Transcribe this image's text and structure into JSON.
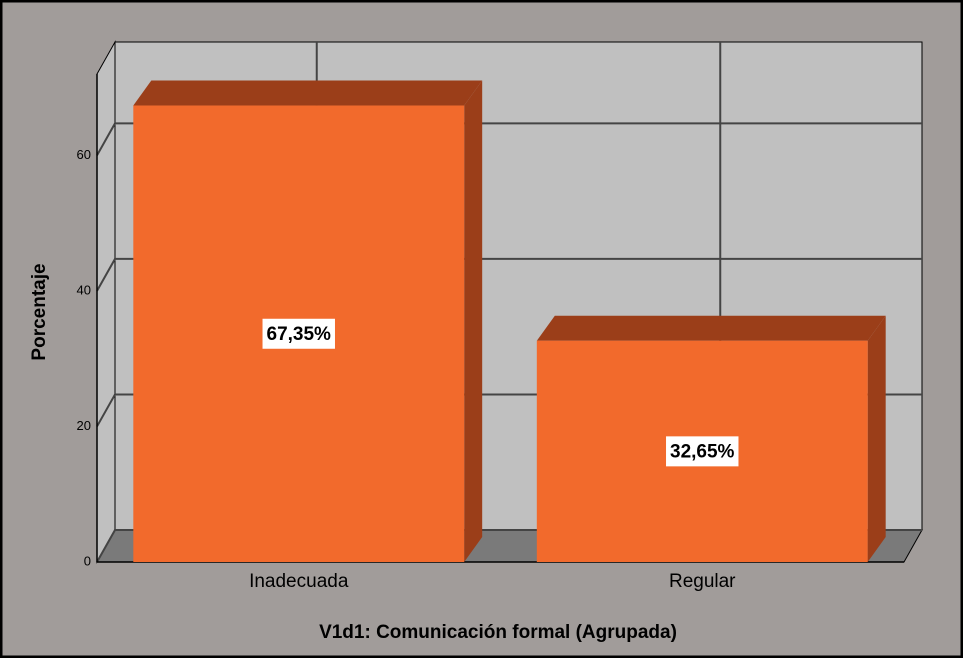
{
  "chart_data": {
    "type": "bar3d",
    "categories": [
      "Inadecuada",
      "Regular"
    ],
    "values": [
      67.35,
      32.65
    ],
    "value_labels": [
      "67,35%",
      "32,65%"
    ],
    "color": "#f26a2c",
    "side_color": "#9b3e19",
    "x_label": "V1d1: Comunicación formal (Agrupada)",
    "y_label": "Porcentaje",
    "ylim": [
      0,
      72
    ],
    "yticks": [
      0,
      20,
      40,
      60
    ],
    "grid": true
  }
}
